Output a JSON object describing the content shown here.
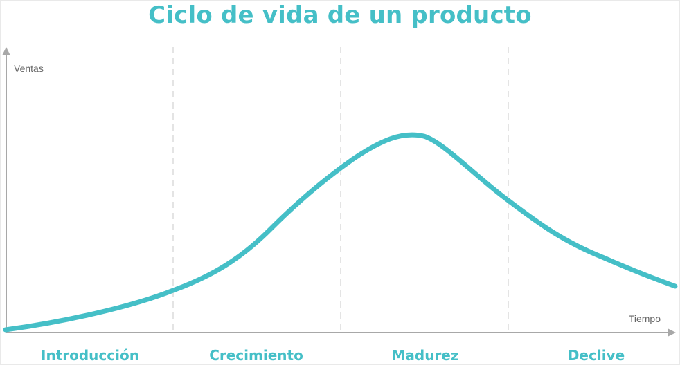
{
  "title": "Ciclo de vida de un producto",
  "y_axis_label": "Ventas",
  "x_axis_label": "Tiempo",
  "stages": [
    "Introducción",
    "Crecimiento",
    "Madurez",
    "Declive"
  ],
  "colors": {
    "curve": "#45bfc7",
    "axis": "#a8a8a8",
    "divider": "#dcdcdc",
    "title": "#45bfc7"
  }
}
